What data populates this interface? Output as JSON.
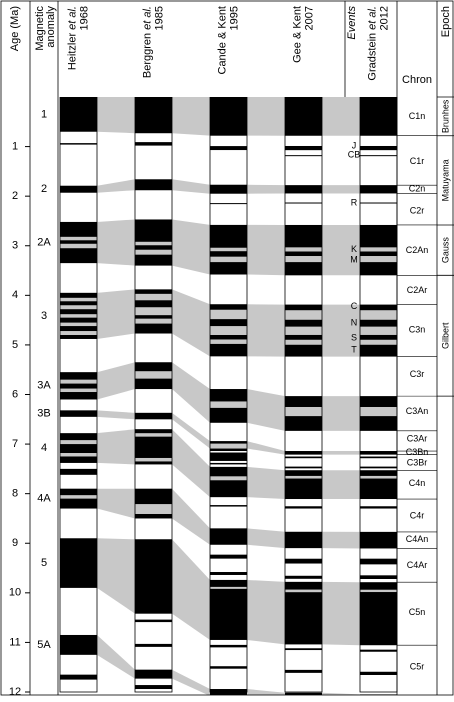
{
  "chart_data": {
    "type": "polarity-columns",
    "y_label": "Age (Ma)",
    "anomaly_label": [
      "Magnetic",
      "anomaly"
    ],
    "ylim": [
      0,
      12
    ],
    "yticks": [
      1,
      2,
      3,
      4,
      5,
      6,
      7,
      8,
      9,
      10,
      11,
      12
    ],
    "columns": [
      {
        "name": "Heitzler",
        "name_italic": "et al.",
        "year": "1968",
        "normal": [
          [
            0,
            0.7
          ],
          [
            0.93,
            0.96
          ],
          [
            1.79,
            1.93
          ],
          [
            2.52,
            2.82
          ],
          [
            2.89,
            2.96
          ],
          [
            3.05,
            3.35
          ],
          [
            3.95,
            4.05
          ],
          [
            4.12,
            4.2
          ],
          [
            4.28,
            4.38
          ],
          [
            4.45,
            4.55
          ],
          [
            4.62,
            4.72
          ],
          [
            4.8,
            4.88
          ],
          [
            5.55,
            5.7
          ],
          [
            5.78,
            5.88
          ],
          [
            5.95,
            6.1
          ],
          [
            6.32,
            6.45
          ],
          [
            6.78,
            6.92
          ],
          [
            7.0,
            7.18
          ],
          [
            7.25,
            7.38
          ],
          [
            7.5,
            7.62
          ],
          [
            7.9,
            8.03
          ],
          [
            8.1,
            8.3
          ],
          [
            8.9,
            9.9
          ],
          [
            10.85,
            11.25
          ],
          [
            11.65,
            11.75
          ]
        ]
      },
      {
        "name": "Berggren",
        "name_italic": "et al.",
        "year": "1985",
        "normal": [
          [
            0,
            0.73
          ],
          [
            0.91,
            0.98
          ],
          [
            1.66,
            1.88
          ],
          [
            2.47,
            2.92
          ],
          [
            2.99,
            3.08
          ],
          [
            3.18,
            3.4
          ],
          [
            3.88,
            3.97
          ],
          [
            4.1,
            4.24
          ],
          [
            4.4,
            4.47
          ],
          [
            4.57,
            4.77
          ],
          [
            5.35,
            5.53
          ],
          [
            5.68,
            5.89
          ],
          [
            6.37,
            6.5
          ],
          [
            6.7,
            6.78
          ],
          [
            6.85,
            7.28
          ],
          [
            7.35,
            7.41
          ],
          [
            7.9,
            8.21
          ],
          [
            8.41,
            8.5
          ],
          [
            8.92,
            10.42
          ],
          [
            10.54,
            10.59
          ],
          [
            11.03,
            11.09
          ],
          [
            11.55,
            11.73
          ],
          [
            11.86,
            11.94
          ]
        ]
      },
      {
        "name": "Cande & Kent",
        "year": "1995",
        "normal": [
          [
            0,
            0.78
          ],
          [
            0.99,
            1.07
          ],
          [
            1.77,
            1.95
          ],
          [
            2.14,
            2.15
          ],
          [
            2.58,
            3.04
          ],
          [
            3.11,
            3.22
          ],
          [
            3.33,
            3.58
          ],
          [
            4.18,
            4.29
          ],
          [
            4.48,
            4.62
          ],
          [
            4.8,
            4.89
          ],
          [
            4.98,
            5.23
          ],
          [
            5.89,
            6.14
          ],
          [
            6.27,
            6.57
          ],
          [
            6.94,
            6.99
          ],
          [
            7.09,
            7.14
          ],
          [
            7.17,
            7.34
          ],
          [
            7.38,
            7.41
          ],
          [
            7.46,
            7.65
          ],
          [
            7.73,
            8.07
          ],
          [
            8.23,
            8.26
          ],
          [
            8.7,
            9.03
          ],
          [
            9.23,
            9.31
          ],
          [
            9.58,
            9.64
          ],
          [
            9.74,
            9.88
          ],
          [
            9.92,
            10.95
          ],
          [
            11.05,
            11.1
          ],
          [
            11.48,
            11.53
          ],
          [
            11.94,
            12.08
          ]
        ]
      },
      {
        "name": "Gee & Kent",
        "year": "2007",
        "normal": [
          [
            0,
            0.781
          ],
          [
            0.988,
            1.072
          ],
          [
            1.173,
            1.185
          ],
          [
            1.778,
            1.945
          ],
          [
            2.128,
            2.148
          ],
          [
            2.581,
            3.032
          ],
          [
            3.116,
            3.207
          ],
          [
            3.33,
            3.596
          ],
          [
            4.187,
            4.3
          ],
          [
            4.493,
            4.631
          ],
          [
            4.799,
            4.896
          ],
          [
            4.997,
            5.235
          ],
          [
            6.033,
            6.252
          ],
          [
            6.436,
            6.733
          ],
          [
            7.14,
            7.212
          ],
          [
            7.251,
            7.285
          ],
          [
            7.454,
            7.489
          ],
          [
            7.528,
            7.642
          ],
          [
            7.695,
            8.108
          ],
          [
            8.254,
            8.3
          ],
          [
            8.769,
            9.098
          ],
          [
            9.312,
            9.409
          ],
          [
            9.656,
            9.717
          ],
          [
            9.779,
            9.934
          ],
          [
            9.987,
            11.04
          ],
          [
            11.118,
            11.154
          ],
          [
            11.554,
            11.614
          ],
          [
            12.014,
            12.116
          ]
        ]
      },
      {
        "name": "Gradstein",
        "name_italic": "et al.",
        "year": "2012",
        "normal": [
          [
            0,
            0.781
          ],
          [
            0.988,
            1.072
          ],
          [
            1.173,
            1.185
          ],
          [
            1.778,
            1.945
          ],
          [
            2.128,
            2.148
          ],
          [
            2.581,
            3.032
          ],
          [
            3.116,
            3.207
          ],
          [
            3.33,
            3.596
          ],
          [
            4.187,
            4.3
          ],
          [
            4.493,
            4.631
          ],
          [
            4.799,
            4.896
          ],
          [
            4.997,
            5.235
          ],
          [
            6.033,
            6.252
          ],
          [
            6.436,
            6.733
          ],
          [
            7.14,
            7.212
          ],
          [
            7.251,
            7.285
          ],
          [
            7.454,
            7.489
          ],
          [
            7.528,
            7.642
          ],
          [
            7.695,
            8.108
          ],
          [
            8.254,
            8.3
          ],
          [
            8.771,
            9.105
          ],
          [
            9.311,
            9.426
          ],
          [
            9.647,
            9.721
          ],
          [
            9.786,
            9.937
          ],
          [
            9.984,
            11.056
          ],
          [
            11.146,
            11.188
          ],
          [
            11.592,
            11.657
          ],
          [
            12.049,
            12.174
          ]
        ]
      }
    ],
    "anomalies": [
      {
        "label": "1",
        "ranges": [
          [
            0,
            0.7
          ],
          [
            0,
            0.73
          ],
          [
            0,
            0.78
          ],
          [
            0,
            0.781
          ],
          [
            0,
            0.781
          ]
        ]
      },
      {
        "label": "2",
        "ranges": [
          [
            1.79,
            1.93
          ],
          [
            1.66,
            1.88
          ],
          [
            1.77,
            1.95
          ],
          [
            1.778,
            1.945
          ],
          [
            1.778,
            1.945
          ]
        ]
      },
      {
        "label": "2A",
        "ranges": [
          [
            2.52,
            3.35
          ],
          [
            2.47,
            3.4
          ],
          [
            2.58,
            3.58
          ],
          [
            2.581,
            3.596
          ],
          [
            2.581,
            3.596
          ]
        ]
      },
      {
        "label": "3",
        "ranges": [
          [
            3.95,
            4.88
          ],
          [
            3.88,
            4.77
          ],
          [
            4.18,
            5.23
          ],
          [
            4.187,
            5.235
          ],
          [
            4.187,
            5.235
          ]
        ]
      },
      {
        "label": "3A",
        "ranges": [
          [
            5.55,
            6.1
          ],
          [
            5.35,
            5.89
          ],
          [
            5.89,
            6.57
          ],
          [
            6.033,
            6.733
          ],
          [
            6.033,
            6.733
          ]
        ]
      },
      {
        "label": "3B",
        "ranges": [
          [
            6.32,
            6.45
          ],
          [
            6.37,
            6.5
          ],
          [
            6.94,
            7.09
          ],
          [
            7.14,
            7.212
          ],
          [
            7.14,
            7.212
          ]
        ]
      },
      {
        "label": "4",
        "ranges": [
          [
            6.78,
            7.38
          ],
          [
            6.7,
            7.41
          ],
          [
            7.46,
            8.07
          ],
          [
            7.528,
            8.108
          ],
          [
            7.528,
            8.108
          ]
        ]
      },
      {
        "label": "4A",
        "ranges": [
          [
            7.9,
            8.3
          ],
          [
            7.9,
            8.5
          ],
          [
            8.7,
            9.03
          ],
          [
            8.769,
            9.098
          ],
          [
            8.771,
            9.105
          ]
        ]
      },
      {
        "label": "5",
        "ranges": [
          [
            8.9,
            9.9
          ],
          [
            8.92,
            10.42
          ],
          [
            9.74,
            10.95
          ],
          [
            9.779,
            11.04
          ],
          [
            9.786,
            11.056
          ]
        ]
      },
      {
        "label": "5A",
        "ranges": [
          [
            10.85,
            11.25
          ],
          [
            11.55,
            11.73
          ],
          [
            11.94,
            12.08
          ],
          [
            12.014,
            12.116
          ],
          [
            12.049,
            12.174
          ]
        ]
      }
    ],
    "events_label": "Events",
    "events": [
      {
        "name": "J",
        "age": 0.99
      },
      {
        "name": "CB",
        "age": 1.17
      },
      {
        "name": "R",
        "age": 2.14
      },
      {
        "name": "K",
        "age": 3.08
      },
      {
        "name": "M",
        "age": 3.29
      },
      {
        "name": "C",
        "age": 4.23
      },
      {
        "name": "N",
        "age": 4.56
      },
      {
        "name": "S",
        "age": 4.86
      },
      {
        "name": "T",
        "age": 5.1
      }
    ],
    "chron_label": "Chron",
    "chrons": [
      {
        "name": "C1n",
        "age": 0.4
      },
      {
        "name": "C1r",
        "age": 1.3
      },
      {
        "name": "C2n",
        "age": 1.86
      },
      {
        "name": "C2r",
        "age": 2.3
      },
      {
        "name": "C2An",
        "age": 3.1
      },
      {
        "name": "C2Ar",
        "age": 3.9
      },
      {
        "name": "C3n",
        "age": 4.7
      },
      {
        "name": "C3r",
        "age": 5.6
      },
      {
        "name": "C3An",
        "age": 6.35
      },
      {
        "name": "C3Ar",
        "age": 6.9
      },
      {
        "name": "C3Bn",
        "age": 7.17
      },
      {
        "name": "C3Br",
        "age": 7.38
      },
      {
        "name": "C4n",
        "age": 7.8
      },
      {
        "name": "C4r",
        "age": 8.45
      },
      {
        "name": "C4An",
        "age": 8.93
      },
      {
        "name": "C4Ar",
        "age": 9.45
      },
      {
        "name": "C5n",
        "age": 10.4
      },
      {
        "name": "C5r",
        "age": 11.5
      }
    ],
    "chron_boundaries": [
      0.781,
      1.778,
      1.945,
      2.581,
      3.596,
      4.187,
      5.235,
      6.033,
      6.733,
      7.14,
      7.212,
      7.528,
      8.108,
      8.771,
      9.105,
      9.786,
      11.056
    ],
    "epoch_label": "Epoch",
    "epochs": [
      {
        "name": "Brunhes",
        "range": [
          0,
          0.781
        ]
      },
      {
        "name": "Matuyama",
        "range": [
          0.781,
          2.581
        ]
      },
      {
        "name": "Gauss",
        "range": [
          2.581,
          3.596
        ]
      },
      {
        "name": "Gilbert",
        "range": [
          3.596,
          6.033
        ]
      }
    ]
  }
}
